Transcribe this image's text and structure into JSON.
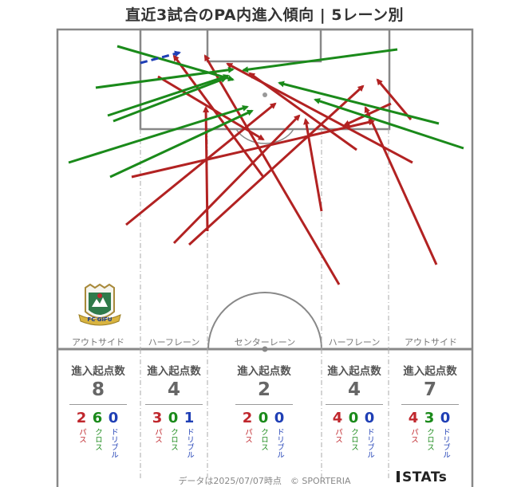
{
  "title": "直近3試合のPA内進入傾向 | 5レーン別",
  "lanes": [
    {
      "name": "アウトサイド",
      "stat_label": "進入起点数",
      "total": "8",
      "pass": "2",
      "cross": "6",
      "dribble": "0"
    },
    {
      "name": "ハーフレーン",
      "stat_label": "進入起点数",
      "total": "4",
      "pass": "3",
      "cross": "0",
      "dribble": "1"
    },
    {
      "name": "センターレーン",
      "stat_label": "進入起点数",
      "total": "2",
      "pass": "2",
      "cross": "0",
      "dribble": "0"
    },
    {
      "name": "ハーフレーン",
      "stat_label": "進入起点数",
      "total": "4",
      "pass": "4",
      "cross": "0",
      "dribble": "0"
    },
    {
      "name": "アウトサイド",
      "stat_label": "進入起点数",
      "total": "7",
      "pass": "4",
      "cross": "3",
      "dribble": "0"
    }
  ],
  "labels": {
    "pass": "パス",
    "cross": "クロス",
    "dribble": "ドリブル"
  },
  "colors": {
    "pass": "#b22222",
    "cross": "#1a8a1a",
    "dribble": "#1f3fb5",
    "lines": "#888888"
  },
  "team_logo": {
    "text": "FC GIFU"
  },
  "footer": {
    "note": "データは2025/07/07時点　© SPORTERIA",
    "brand": "STATs"
  }
}
